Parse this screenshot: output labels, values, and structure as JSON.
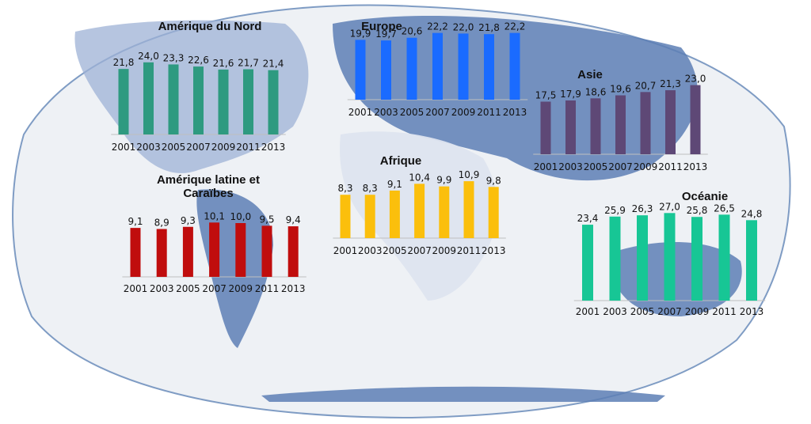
{
  "chart_data": [
    {
      "type": "bar",
      "title": "Amérique du Nord",
      "color": "#2e9a80",
      "categories": [
        "2001",
        "2003",
        "2005",
        "2007",
        "2009",
        "2011",
        "2013"
      ],
      "values": [
        21.8,
        24.0,
        23.3,
        22.6,
        21.6,
        21.7,
        21.4
      ],
      "labels": [
        "21,8",
        "24,0",
        "23,3",
        "22,6",
        "21,6",
        "21,7",
        "21,4"
      ]
    },
    {
      "type": "bar",
      "title": "Europe",
      "color": "#1a6bff",
      "categories": [
        "2001",
        "2003",
        "2005",
        "2007",
        "2009",
        "2011",
        "2013"
      ],
      "values": [
        19.9,
        19.7,
        20.6,
        22.2,
        22.0,
        21.8,
        22.2
      ],
      "labels": [
        "19,9",
        "19,7",
        "20,6",
        "22,2",
        "22,0",
        "21,8",
        "22,2"
      ]
    },
    {
      "type": "bar",
      "title": "Asie",
      "color": "#5e4876",
      "categories": [
        "2001",
        "2003",
        "2005",
        "2007",
        "2009",
        "2011",
        "2013"
      ],
      "values": [
        17.5,
        17.9,
        18.6,
        19.6,
        20.7,
        21.3,
        23.0
      ],
      "labels": [
        "17,5",
        "17,9",
        "18,6",
        "19,6",
        "20,7",
        "21,3",
        "23,0"
      ]
    },
    {
      "type": "bar",
      "title": "Amérique latine et Caraïbes",
      "title_lines": [
        "Amérique latine et",
        "Caraïbes"
      ],
      "color": "#c00d0d",
      "categories": [
        "2001",
        "2003",
        "2005",
        "2007",
        "2009",
        "2011",
        "2013"
      ],
      "values": [
        9.1,
        8.9,
        9.3,
        10.1,
        10.0,
        9.5,
        9.4
      ],
      "labels": [
        "9,1",
        "8,9",
        "9,3",
        "10,1",
        "10,0",
        "9,5",
        "9,4"
      ]
    },
    {
      "type": "bar",
      "title": "Afrique",
      "color": "#fbbf0c",
      "categories": [
        "2001",
        "2003",
        "2005",
        "2007",
        "2009",
        "2011",
        "2013"
      ],
      "values": [
        8.3,
        8.3,
        9.1,
        10.4,
        9.9,
        10.9,
        9.8
      ],
      "labels": [
        "8,3",
        "8,3",
        "9,1",
        "10,4",
        "9,9",
        "10,9",
        "9,8"
      ]
    },
    {
      "type": "bar",
      "title": "Océanie",
      "color": "#17c695",
      "categories": [
        "2001",
        "2003",
        "2005",
        "2007",
        "2009",
        "2011",
        "2013"
      ],
      "values": [
        23.4,
        25.9,
        26.3,
        27.0,
        25.8,
        26.5,
        24.8
      ],
      "labels": [
        "23,4",
        "25,9",
        "26,3",
        "27,0",
        "25,8",
        "26,5",
        "24,8"
      ]
    }
  ]
}
